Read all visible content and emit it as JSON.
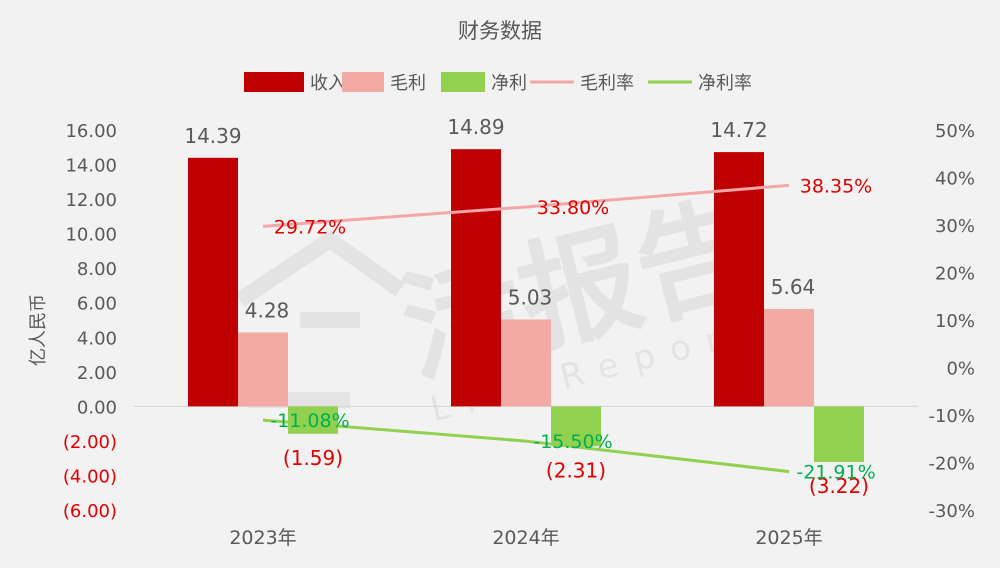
{
  "chart_data": {
    "type": "bar",
    "title": "财务数据",
    "ylabel": "亿人民币",
    "categories": [
      "2023年",
      "2024年",
      "2025年"
    ],
    "series": [
      {
        "name": "收入",
        "kind": "bar",
        "axis": "left",
        "color": "#c00000",
        "values": [
          14.39,
          14.89,
          14.72
        ],
        "labels": [
          "14.39",
          "14.89",
          "14.72"
        ]
      },
      {
        "name": "毛利",
        "kind": "bar",
        "axis": "left",
        "color": "#f4aaa4",
        "values": [
          4.28,
          5.03,
          5.64
        ],
        "labels": [
          "4.28",
          "5.03",
          "5.64"
        ]
      },
      {
        "name": "净利",
        "kind": "bar",
        "axis": "left",
        "color": "#92d050",
        "values": [
          -1.59,
          -2.31,
          -3.22
        ],
        "labels": [
          "(1.59)",
          "(2.31)",
          "(3.22)"
        ]
      },
      {
        "name": "毛利率",
        "kind": "line",
        "axis": "right",
        "color": "#f4a6a6",
        "values": [
          29.72,
          33.8,
          38.35
        ],
        "labels": [
          "29.72%",
          "33.80%",
          "38.35%"
        ]
      },
      {
        "name": "净利率",
        "kind": "line",
        "axis": "right",
        "color": "#92d050",
        "values": [
          -11.08,
          -15.5,
          -21.91
        ],
        "labels": [
          "-11.08%",
          "-15.50%",
          "-21.91%"
        ]
      }
    ],
    "y_left": {
      "range": [
        -6,
        16
      ],
      "ticks": [
        16,
        14,
        12,
        10,
        8,
        6,
        4,
        2,
        0,
        -2,
        -4,
        -6
      ],
      "tick_labels": [
        "16.00",
        "14.00",
        "12.00",
        "10.00",
        "8.00",
        "6.00",
        "4.00",
        "2.00",
        "0.00",
        "(2.00)",
        "(4.00)",
        "(6.00)"
      ]
    },
    "y_right": {
      "range": [
        -30,
        50
      ],
      "ticks": [
        50,
        40,
        30,
        20,
        10,
        0,
        -10,
        -20,
        -30
      ],
      "tick_labels": [
        "50%",
        "40%",
        "30%",
        "20%",
        "10%",
        "0%",
        "-10%",
        "-20%",
        "-30%"
      ]
    },
    "legend_position": "top",
    "grid": false,
    "colors": {
      "negative_text": "#e00000",
      "axis_text": "#595959",
      "line_label_red": "#e00000",
      "line_label_green": "#00b050"
    }
  },
  "watermark": {
    "text": "活报告",
    "subtext": "LiveReport"
  }
}
